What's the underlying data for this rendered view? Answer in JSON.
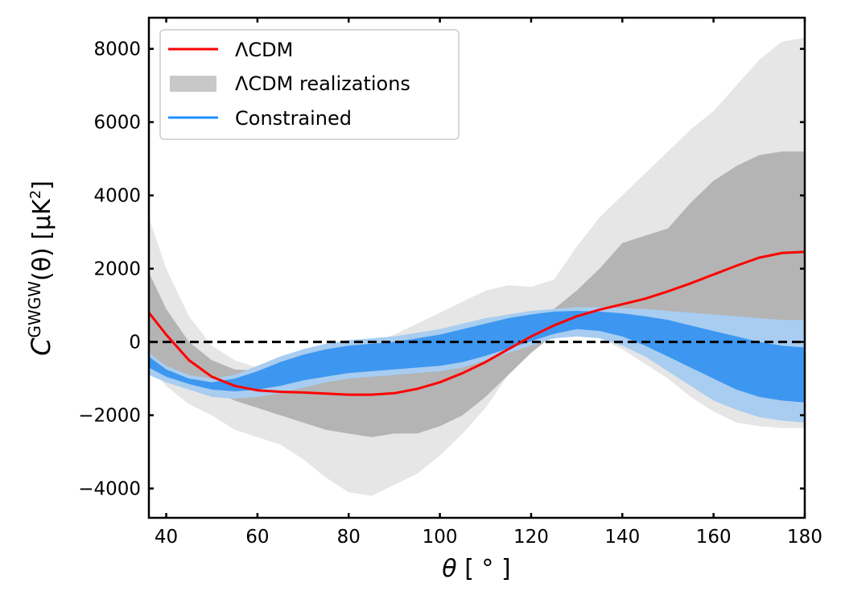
{
  "chart_data": {
    "type": "line",
    "title": "",
    "xlabel_symbol": "θ",
    "xlabel_unit": " [ ° ]",
    "ylabel_main": "C",
    "ylabel_sup": "GWGW",
    "ylabel_arg": "(θ) [μK",
    "ylabel_sup2": "2",
    "ylabel_end": "]",
    "xlim": [
      36.2,
      180
    ],
    "ylim": [
      -4800,
      8850
    ],
    "xticks": [
      40,
      60,
      80,
      100,
      120,
      140,
      160,
      180
    ],
    "yticks": [
      -4000,
      -2000,
      0,
      2000,
      4000,
      6000,
      8000
    ],
    "ytick_labels": [
      "−4000",
      "−2000",
      "0",
      "2000",
      "4000",
      "6000",
      "8000"
    ],
    "zero_line": {
      "y": 0,
      "style": "dashed",
      "color": "#000000"
    },
    "legend": {
      "position": "upper-left",
      "entries": [
        {
          "label": "ΛCDM",
          "kind": "line",
          "color": "#ff0000"
        },
        {
          "label": "ΛCDM realizations",
          "kind": "patch",
          "color": "#c8c8c8"
        },
        {
          "label": "Constrained",
          "kind": "line",
          "color": "#1e90ff"
        }
      ]
    },
    "series": [
      {
        "name": "ΛCDM",
        "kind": "line",
        "color": "#ff0000",
        "x": [
          36.2,
          40,
          45,
          50,
          55,
          60,
          65,
          70,
          75,
          80,
          85,
          90,
          95,
          100,
          105,
          110,
          115,
          120,
          125,
          130,
          135,
          140,
          145,
          150,
          155,
          160,
          165,
          170,
          175,
          180
        ],
        "y": [
          800,
          200,
          -500,
          -950,
          -1200,
          -1320,
          -1360,
          -1380,
          -1410,
          -1440,
          -1440,
          -1400,
          -1280,
          -1100,
          -850,
          -550,
          -200,
          150,
          450,
          700,
          880,
          1030,
          1180,
          1380,
          1600,
          1840,
          2080,
          2300,
          2430,
          2460
        ]
      },
      {
        "name": "ΛCDM realizations (outer)",
        "kind": "band",
        "color": "#e6e6e6",
        "x": [
          36.2,
          40,
          45,
          50,
          55,
          60,
          65,
          70,
          75,
          80,
          85,
          90,
          95,
          100,
          105,
          110,
          115,
          120,
          125,
          130,
          135,
          140,
          145,
          150,
          155,
          160,
          165,
          170,
          175,
          180
        ],
        "upper": [
          3400,
          2000,
          700,
          -100,
          -500,
          -700,
          -650,
          -550,
          -400,
          -200,
          0,
          200,
          500,
          800,
          1100,
          1400,
          1550,
          1500,
          1700,
          2600,
          3400,
          4000,
          4600,
          5200,
          5800,
          6300,
          7000,
          7700,
          8200,
          8300
        ],
        "lower": [
          -700,
          -1200,
          -1700,
          -2000,
          -2400,
          -2600,
          -2800,
          -3200,
          -3700,
          -4100,
          -4200,
          -3900,
          -3600,
          -3100,
          -2500,
          -1800,
          -900,
          -100,
          300,
          300,
          100,
          -200,
          -600,
          -1000,
          -1500,
          -1900,
          -2200,
          -2300,
          -2350,
          -2350
        ]
      },
      {
        "name": "ΛCDM realizations (inner)",
        "kind": "band",
        "color": "#b4b4b4",
        "x": [
          36.2,
          40,
          45,
          50,
          55,
          60,
          65,
          70,
          75,
          80,
          85,
          90,
          95,
          100,
          105,
          110,
          115,
          120,
          125,
          130,
          135,
          140,
          145,
          150,
          155,
          160,
          165,
          170,
          175,
          180
        ],
        "upper": [
          1900,
          900,
          0,
          -500,
          -750,
          -780,
          -700,
          -600,
          -500,
          -400,
          -300,
          -200,
          -100,
          50,
          250,
          450,
          600,
          700,
          900,
          1400,
          2000,
          2700,
          2900,
          3100,
          3800,
          4400,
          4800,
          5100,
          5200,
          5200
        ],
        "lower": [
          -300,
          -700,
          -1100,
          -1300,
          -1600,
          -1800,
          -2000,
          -2200,
          -2400,
          -2500,
          -2600,
          -2500,
          -2500,
          -2300,
          -2000,
          -1500,
          -900,
          -300,
          200,
          400,
          400,
          350,
          250,
          100,
          0,
          -50,
          -100,
          -150,
          -200,
          -300
        ]
      },
      {
        "name": "Constrained (outer)",
        "kind": "band",
        "color": "#a8cdf0",
        "x": [
          36.2,
          40,
          45,
          50,
          55,
          60,
          65,
          70,
          75,
          80,
          85,
          90,
          95,
          100,
          105,
          110,
          115,
          120,
          125,
          130,
          135,
          140,
          145,
          150,
          155,
          160,
          165,
          170,
          175,
          180
        ],
        "upper": [
          -300,
          -650,
          -900,
          -1000,
          -900,
          -650,
          -400,
          -200,
          -50,
          50,
          100,
          150,
          250,
          350,
          500,
          650,
          750,
          850,
          900,
          950,
          950,
          920,
          900,
          850,
          800,
          750,
          700,
          650,
          600,
          600
        ],
        "lower": [
          -900,
          -1100,
          -1300,
          -1500,
          -1550,
          -1500,
          -1400,
          -1250,
          -1100,
          -1000,
          -950,
          -900,
          -850,
          -800,
          -700,
          -500,
          -300,
          -100,
          100,
          150,
          100,
          -100,
          -400,
          -800,
          -1200,
          -1600,
          -1850,
          -2050,
          -2150,
          -2200
        ]
      },
      {
        "name": "Constrained (inner)",
        "kind": "band",
        "color": "#3d97f0",
        "x": [
          36.2,
          40,
          45,
          50,
          55,
          60,
          65,
          70,
          75,
          80,
          85,
          90,
          95,
          100,
          105,
          110,
          115,
          120,
          125,
          130,
          135,
          140,
          145,
          150,
          155,
          160,
          165,
          170,
          175,
          180
        ],
        "upper": [
          -400,
          -750,
          -1000,
          -1100,
          -1000,
          -800,
          -550,
          -350,
          -200,
          -100,
          -50,
          0,
          100,
          200,
          350,
          500,
          650,
          750,
          830,
          850,
          830,
          780,
          700,
          600,
          450,
          300,
          150,
          0,
          -100,
          -150
        ],
        "lower": [
          -700,
          -950,
          -1150,
          -1300,
          -1350,
          -1300,
          -1200,
          -1050,
          -950,
          -850,
          -800,
          -750,
          -700,
          -650,
          -550,
          -380,
          -180,
          20,
          220,
          350,
          300,
          150,
          -100,
          -400,
          -700,
          -1000,
          -1300,
          -1500,
          -1600,
          -1650
        ]
      }
    ]
  }
}
